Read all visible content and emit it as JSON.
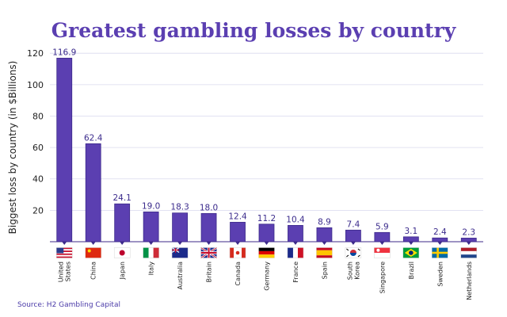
{
  "chart_data": {
    "type": "bar",
    "title": "Greatest gambling losses by country",
    "ylabel": "Biggest loss by country (in $Billions)",
    "xlabel": "",
    "ylim": [
      0,
      120
    ],
    "yticks": [
      20,
      40,
      60,
      80,
      100,
      120
    ],
    "grid": true,
    "categories": [
      [
        "United",
        "States"
      ],
      [
        "China"
      ],
      [
        "Japan"
      ],
      [
        "Italy"
      ],
      [
        "Australia"
      ],
      [
        "Britain"
      ],
      [
        "Canada"
      ],
      [
        "Germany"
      ],
      [
        "France"
      ],
      [
        "Spain"
      ],
      [
        "South",
        "Korea"
      ],
      [
        "Singapore"
      ],
      [
        "Brazil"
      ],
      [
        "Sweden"
      ],
      [
        "Netherlands"
      ]
    ],
    "values": [
      116.9,
      62.4,
      24.1,
      19.0,
      18.3,
      18.0,
      12.4,
      11.2,
      10.4,
      8.9,
      7.4,
      5.9,
      3.1,
      2.4,
      2.3
    ],
    "value_labels": [
      "116.9",
      "62.4",
      "24.1",
      "19.0",
      "18.3",
      "18.0",
      "12.4",
      "11.2",
      "10.4",
      "8.9",
      "7.4",
      "5.9",
      "3.1",
      "2.4",
      "2.3"
    ],
    "flags": [
      "us-flag-icon",
      "china-flag-icon",
      "japan-flag-icon",
      "italy-flag-icon",
      "australia-flag-icon",
      "uk-flag-icon",
      "canada-flag-icon",
      "germany-flag-icon",
      "france-flag-icon",
      "spain-flag-icon",
      "south-korea-flag-icon",
      "singapore-flag-icon",
      "brazil-flag-icon",
      "sweden-flag-icon",
      "netherlands-flag-icon"
    ],
    "source": "Source: H2 Gambling Capital"
  },
  "colors": {
    "bar": "#5b3fb1",
    "bar_stroke": "#3d2a8a",
    "title": "#5b3fb1",
    "grid": "#d9d9ee",
    "axis": "#3d2a8a"
  }
}
